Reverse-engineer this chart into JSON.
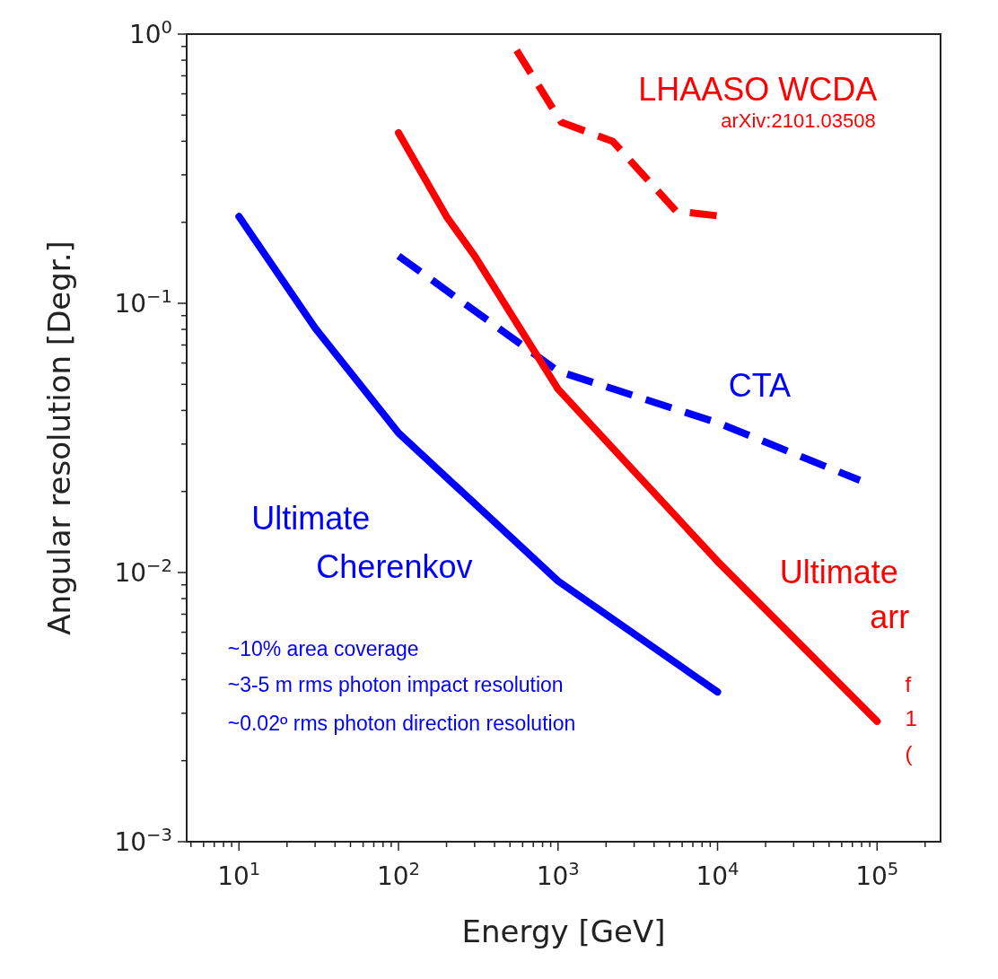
{
  "chart_data": {
    "type": "line",
    "xlabel": "Energy [GeV]",
    "ylabel": "Angular resolution [Degr.]",
    "log": "xy",
    "grid": false,
    "marker": "none",
    "xlim": [
      4.7,
      250000
    ],
    "ylim": [
      0.001,
      1
    ],
    "xticks": [
      {
        "value": 5,
        "label": null
      },
      {
        "value": 6,
        "label": null
      },
      {
        "value": 7,
        "label": null
      },
      {
        "value": 8,
        "label": null
      },
      {
        "value": 9,
        "label": null
      },
      {
        "value": 10,
        "label": "10$^{1}$"
      },
      {
        "value": 20,
        "label": null
      },
      {
        "value": 30,
        "label": null
      },
      {
        "value": 40,
        "label": null
      },
      {
        "value": 50,
        "label": null
      },
      {
        "value": 60,
        "label": null
      },
      {
        "value": 70,
        "label": null
      },
      {
        "value": 80,
        "label": null
      },
      {
        "value": 90,
        "label": null
      },
      {
        "value": 100,
        "label": "10$^{2}$"
      },
      {
        "value": 200,
        "label": null
      },
      {
        "value": 300,
        "label": null
      },
      {
        "value": 400,
        "label": null
      },
      {
        "value": 500,
        "label": null
      },
      {
        "value": 600,
        "label": null
      },
      {
        "value": 700,
        "label": null
      },
      {
        "value": 800,
        "label": null
      },
      {
        "value": 900,
        "label": null
      },
      {
        "value": 1000,
        "label": "10$^{3}$"
      },
      {
        "value": 2000,
        "label": null
      },
      {
        "value": 3000,
        "label": null
      },
      {
        "value": 4000,
        "label": null
      },
      {
        "value": 5000,
        "label": null
      },
      {
        "value": 6000,
        "label": null
      },
      {
        "value": 7000,
        "label": null
      },
      {
        "value": 8000,
        "label": null
      },
      {
        "value": 9000,
        "label": null
      },
      {
        "value": 10000,
        "label": "10$^{4}$"
      },
      {
        "value": 20000,
        "label": null
      },
      {
        "value": 30000,
        "label": null
      },
      {
        "value": 40000,
        "label": null
      },
      {
        "value": 50000,
        "label": null
      },
      {
        "value": 60000,
        "label": null
      },
      {
        "value": 70000,
        "label": null
      },
      {
        "value": 80000,
        "label": null
      },
      {
        "value": 90000,
        "label": null
      },
      {
        "value": 100000,
        "label": "10$^{5}$"
      },
      {
        "value": 200000,
        "label": null
      }
    ],
    "yticks": [
      {
        "value": 0.001,
        "label": "10$^{−3}$"
      },
      {
        "value": 0.002,
        "label": null
      },
      {
        "value": 0.003,
        "label": null
      },
      {
        "value": 0.004,
        "label": null
      },
      {
        "value": 0.005,
        "label": null
      },
      {
        "value": 0.006,
        "label": null
      },
      {
        "value": 0.007,
        "label": null
      },
      {
        "value": 0.008,
        "label": null
      },
      {
        "value": 0.009,
        "label": null
      },
      {
        "value": 0.01,
        "label": "10$^{−2}$"
      },
      {
        "value": 0.02,
        "label": null
      },
      {
        "value": 0.03,
        "label": null
      },
      {
        "value": 0.04,
        "label": null
      },
      {
        "value": 0.05,
        "label": null
      },
      {
        "value": 0.06,
        "label": null
      },
      {
        "value": 0.07,
        "label": null
      },
      {
        "value": 0.08,
        "label": null
      },
      {
        "value": 0.09,
        "label": null
      },
      {
        "value": 0.1,
        "label": "10$^{−1}$"
      },
      {
        "value": 0.2,
        "label": null
      },
      {
        "value": 0.3,
        "label": null
      },
      {
        "value": 0.4,
        "label": null
      },
      {
        "value": 0.5,
        "label": null
      },
      {
        "value": 0.6,
        "label": null
      },
      {
        "value": 0.7,
        "label": null
      },
      {
        "value": 0.8,
        "label": null
      },
      {
        "value": 0.9,
        "label": null
      },
      {
        "value": 1,
        "label": "10$^{0}$"
      }
    ],
    "series": [
      {
        "name": "Ultimate Cherenkov",
        "color": "#0000ff",
        "line_style": "solid",
        "x": [
          10,
          30,
          100,
          1000,
          10000
        ],
        "values": [
          0.21,
          0.081,
          0.033,
          0.0093,
          0.0036
        ]
      },
      {
        "name": "CTA",
        "color": "#0000ff",
        "line_style": "dashed",
        "x": [
          100,
          1000,
          10000,
          78000
        ],
        "values": [
          0.15,
          0.056,
          0.036,
          0.022
        ]
      },
      {
        "name": "LHAASO WCDA",
        "color": "#ff0000",
        "line_style": "dashed",
        "x": [
          550,
          1050,
          2200,
          5500,
          11000
        ],
        "values": [
          0.87,
          0.47,
          0.4,
          0.22,
          0.21
        ]
      },
      {
        "color": "#ff0000",
        "line_style": "solid",
        "x": [
          100,
          200,
          300,
          1000,
          10000,
          100000
        ],
        "values": [
          0.43,
          0.21,
          0.15,
          0.048,
          0.011,
          0.0028
        ]
      }
    ],
    "annotations": [
      "arXiv:2101.03508",
      "~10% area coverage",
      "~3-5 m rms photon impact resolution",
      "~0.02º rms photon direction resolution",
      "Ultimate",
      "arr",
      "f",
      "1",
      "("
    ]
  }
}
